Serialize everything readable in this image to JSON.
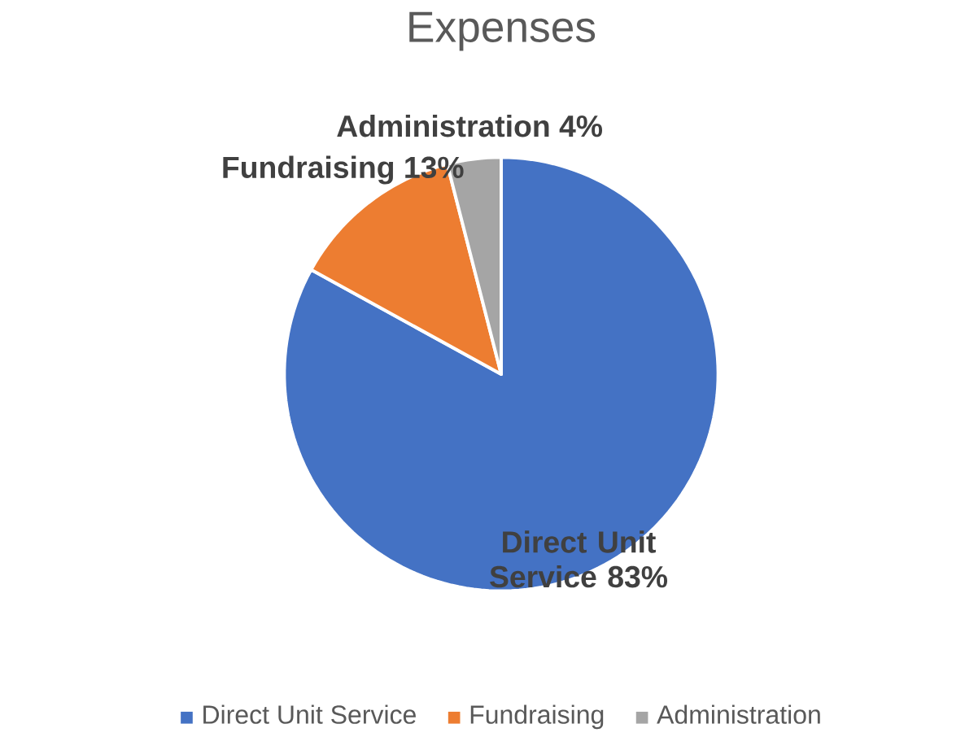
{
  "chart_data": {
    "type": "pie",
    "title": "Expenses",
    "categories": [
      "Direct Unit Service",
      "Fundraising",
      "Administration"
    ],
    "values": [
      83,
      13,
      4
    ],
    "colors": [
      "#4472c4",
      "#ed7d31",
      "#a5a5a5"
    ],
    "value_labels": [
      "83%",
      "13%",
      "4%"
    ],
    "legend": "bottom"
  }
}
